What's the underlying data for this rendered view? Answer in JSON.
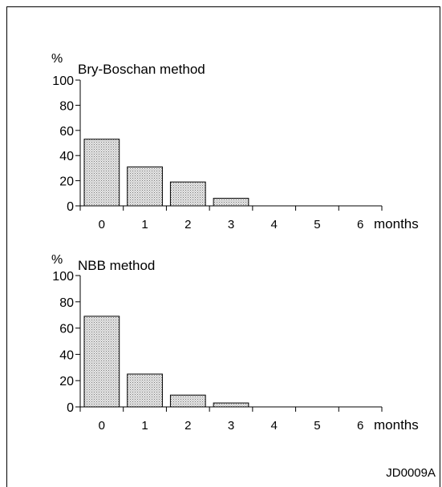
{
  "footer_code": "JD0009A",
  "chart_data": [
    {
      "type": "bar",
      "title": "Bry-Boschan method",
      "ylabel": "%",
      "xlabel": "months",
      "categories": [
        "0",
        "1",
        "2",
        "3",
        "4",
        "5",
        "6"
      ],
      "values": [
        53,
        31,
        19,
        6,
        0,
        0,
        0
      ],
      "ylim": [
        0,
        100
      ],
      "yticks": [
        "0",
        "20",
        "40",
        "60",
        "80",
        "100"
      ],
      "grid": false,
      "bar_fill": "#c8c8c8"
    },
    {
      "type": "bar",
      "title": "NBB method",
      "ylabel": "%",
      "xlabel": "months",
      "categories": [
        "0",
        "1",
        "2",
        "3",
        "4",
        "5",
        "6"
      ],
      "values": [
        69,
        25,
        9,
        3,
        0,
        0,
        0
      ],
      "ylim": [
        0,
        100
      ],
      "yticks": [
        "0",
        "20",
        "40",
        "60",
        "80",
        "100"
      ],
      "grid": false,
      "bar_fill": "#c8c8c8"
    }
  ]
}
